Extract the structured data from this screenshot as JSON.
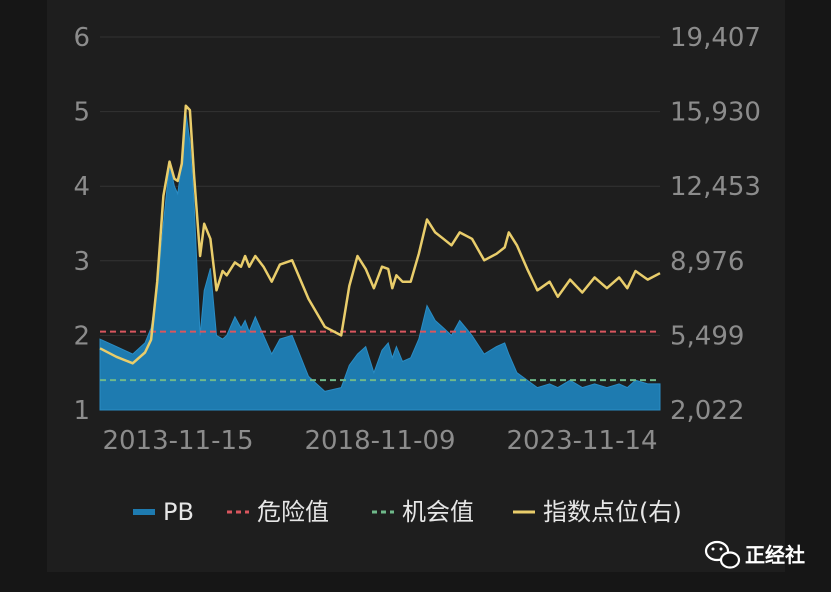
{
  "chart_data": {
    "type": "line",
    "x_ticks": [
      "2013-11-15",
      "2018-11-09",
      "2023-11-14"
    ],
    "y_left_ticks": [
      1,
      2,
      3,
      4,
      5,
      6
    ],
    "y_left_range": [
      1,
      6
    ],
    "y_right_ticks": [
      "2,022",
      "5,499",
      "8,976",
      "12,453",
      "15,930",
      "19,407"
    ],
    "y_right_range": [
      2022,
      19407
    ],
    "grid": true,
    "legend_position": "bottom",
    "thresholds": {
      "danger": 2.05,
      "opportunity": 1.4
    },
    "series": [
      {
        "name": "PB",
        "kind": "area",
        "axis": "left",
        "color": "#1e7bb0",
        "x": [
          2011.9,
          2012.3,
          2012.7,
          2013.0,
          2013.15,
          2013.3,
          2013.45,
          2013.6,
          2013.72,
          2013.8,
          2013.9,
          2014.0,
          2014.1,
          2014.2,
          2014.35,
          2014.45,
          2014.6,
          2014.75,
          2014.9,
          2015.0,
          2015.2,
          2015.35,
          2015.45,
          2015.55,
          2015.7,
          2015.9,
          2016.1,
          2016.3,
          2016.6,
          2017.0,
          2017.4,
          2017.8,
          2018.0,
          2018.2,
          2018.4,
          2018.6,
          2018.8,
          2018.95,
          2019.05,
          2019.15,
          2019.3,
          2019.5,
          2019.7,
          2019.9,
          2020.1,
          2020.3,
          2020.5,
          2020.7,
          2021.0,
          2021.3,
          2021.6,
          2021.8,
          2021.9,
          2022.1,
          2022.35,
          2022.6,
          2022.9,
          2023.1,
          2023.4,
          2023.7,
          2024.0,
          2024.3,
          2024.6,
          2024.8,
          2025.0,
          2025.3,
          2025.6
        ],
        "values": [
          1.95,
          1.85,
          1.75,
          1.9,
          2.1,
          2.6,
          3.5,
          4.3,
          4.0,
          3.9,
          4.3,
          5.0,
          4.6,
          3.8,
          2.0,
          2.6,
          2.9,
          2.0,
          1.95,
          2.0,
          2.25,
          2.1,
          2.2,
          2.05,
          2.25,
          2.0,
          1.75,
          1.95,
          2.0,
          1.45,
          1.25,
          1.3,
          1.6,
          1.75,
          1.85,
          1.5,
          1.8,
          1.9,
          1.7,
          1.85,
          1.65,
          1.7,
          1.95,
          2.4,
          2.2,
          2.1,
          2.0,
          2.2,
          2.0,
          1.75,
          1.85,
          1.9,
          1.75,
          1.5,
          1.4,
          1.3,
          1.35,
          1.3,
          1.4,
          1.3,
          1.35,
          1.3,
          1.35,
          1.3,
          1.4,
          1.35,
          1.35
        ]
      },
      {
        "name": "危险值",
        "kind": "dashed",
        "axis": "left",
        "color": "#d9565e"
      },
      {
        "name": "机会值",
        "kind": "dashed",
        "axis": "left",
        "color": "#6fb98a"
      },
      {
        "name": "指数点位(右)",
        "kind": "line",
        "axis": "right",
        "color": "#e9cd6b",
        "x": [
          2011.9,
          2012.3,
          2012.7,
          2013.0,
          2013.15,
          2013.3,
          2013.45,
          2013.6,
          2013.72,
          2013.8,
          2013.9,
          2014.0,
          2014.1,
          2014.2,
          2014.35,
          2014.45,
          2014.6,
          2014.75,
          2014.9,
          2015.0,
          2015.2,
          2015.35,
          2015.45,
          2015.55,
          2015.7,
          2015.9,
          2016.1,
          2016.3,
          2016.6,
          2017.0,
          2017.4,
          2017.8,
          2018.0,
          2018.2,
          2018.4,
          2018.6,
          2018.8,
          2018.95,
          2019.05,
          2019.15,
          2019.3,
          2019.5,
          2019.7,
          2019.9,
          2020.1,
          2020.3,
          2020.5,
          2020.7,
          2021.0,
          2021.3,
          2021.6,
          2021.8,
          2021.9,
          2022.1,
          2022.35,
          2022.6,
          2022.9,
          2023.1,
          2023.4,
          2023.7,
          2024.0,
          2024.3,
          2024.6,
          2024.8,
          2025.0,
          2025.3,
          2025.6
        ],
        "values": [
          4900,
          4500,
          4200,
          4700,
          5300,
          8000,
          12000,
          13600,
          12800,
          12700,
          13500,
          16200,
          16000,
          13000,
          9200,
          10700,
          10000,
          7600,
          8500,
          8300,
          8900,
          8700,
          9200,
          8700,
          9200,
          8700,
          8000,
          8800,
          9000,
          7200,
          5900,
          5500,
          7800,
          9200,
          8600,
          7700,
          8700,
          8600,
          7700,
          8300,
          8000,
          8000,
          9300,
          10900,
          10300,
          10000,
          9700,
          10300,
          10000,
          9000,
          9300,
          9600,
          10300,
          9700,
          8600,
          7600,
          8000,
          7300,
          8100,
          7500,
          8200,
          7700,
          8200,
          7700,
          8500,
          8100,
          8400
        ]
      }
    ]
  },
  "watermark": {
    "icon": "wechat-icon",
    "text": "正经社"
  }
}
